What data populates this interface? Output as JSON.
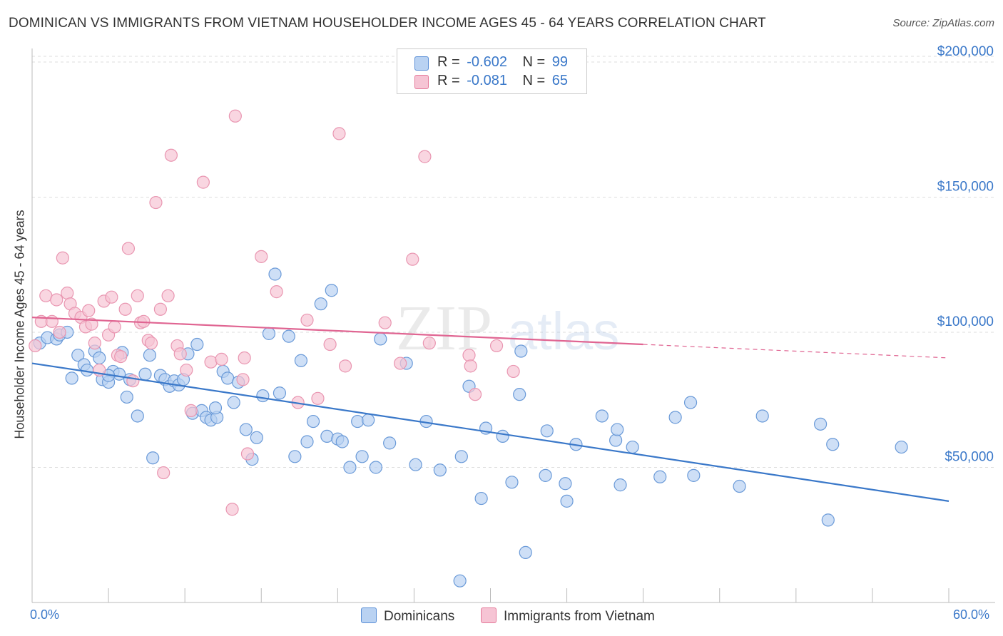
{
  "title": "DOMINICAN VS IMMIGRANTS FROM VIETNAM HOUSEHOLDER INCOME AGES 45 - 64 YEARS CORRELATION CHART",
  "source": "Source: ZipAtlas.com",
  "watermark": {
    "zip": "ZIP",
    "atlas": "atlas"
  },
  "legend": {
    "r_label": "R =",
    "n_label": "N =",
    "rows": [
      {
        "r": "-0.602",
        "n": "99",
        "color": "#5b8fd6"
      },
      {
        "r": "-0.081",
        "n": "65",
        "color": "#e57a9a"
      }
    ]
  },
  "colors": {
    "blue": "#3a78c9",
    "pink": "#e06592",
    "blue_fill": "#b9d2f2",
    "pink_fill": "#f6c4d4"
  },
  "chart_data": {
    "type": "scatter",
    "title": "DOMINICAN VS IMMIGRANTS FROM VIETNAM HOUSEHOLDER INCOME AGES 45 - 64 YEARS CORRELATION CHART",
    "xlabel": "",
    "ylabel": "Householder Income Ages 45 - 64 years",
    "xlim": [
      0,
      60
    ],
    "ylim": [
      0,
      205000
    ],
    "x_tick_labels": [
      "0.0%",
      "60.0%"
    ],
    "y_ticks": [
      50000,
      100000,
      150000,
      200000
    ],
    "y_tick_labels": [
      "$50,000",
      "$100,000",
      "$150,000",
      "$200,000"
    ],
    "grid": true,
    "legend_position": "top-center",
    "series": [
      {
        "name": "Dominicans",
        "r": -0.602,
        "n": 99,
        "trend": {
          "x": [
            0,
            60
          ],
          "y": [
            88500,
            37500
          ],
          "dashed_from": null
        },
        "points": [
          [
            0.5,
            96000
          ],
          [
            1.0,
            98000
          ],
          [
            1.6,
            97500
          ],
          [
            1.8,
            99000
          ],
          [
            2.3,
            100000
          ],
          [
            2.6,
            83000
          ],
          [
            3.0,
            91500
          ],
          [
            3.4,
            88000
          ],
          [
            3.6,
            86000
          ],
          [
            4.1,
            93000
          ],
          [
            4.4,
            90500
          ],
          [
            4.6,
            82500
          ],
          [
            5.0,
            81500
          ],
          [
            5.3,
            85500
          ],
          [
            5.7,
            84500
          ],
          [
            5.9,
            92500
          ],
          [
            6.2,
            76000
          ],
          [
            6.4,
            82500
          ],
          [
            6.9,
            69000
          ],
          [
            7.4,
            84500
          ],
          [
            7.7,
            91500
          ],
          [
            7.9,
            53500
          ],
          [
            8.4,
            84000
          ],
          [
            8.7,
            82500
          ],
          [
            9.0,
            80000
          ],
          [
            9.3,
            82000
          ],
          [
            9.6,
            80500
          ],
          [
            9.9,
            82500
          ],
          [
            10.2,
            92000
          ],
          [
            10.5,
            70000
          ],
          [
            10.8,
            95500
          ],
          [
            11.1,
            71000
          ],
          [
            11.4,
            68500
          ],
          [
            11.7,
            67500
          ],
          [
            12.1,
            68500
          ],
          [
            12.5,
            85500
          ],
          [
            12.8,
            83000
          ],
          [
            13.2,
            74000
          ],
          [
            13.5,
            81500
          ],
          [
            14.0,
            64000
          ],
          [
            14.4,
            53000
          ],
          [
            14.7,
            61000
          ],
          [
            15.1,
            76500
          ],
          [
            15.5,
            99500
          ],
          [
            15.9,
            121500
          ],
          [
            16.2,
            77500
          ],
          [
            16.8,
            98500
          ],
          [
            17.2,
            54000
          ],
          [
            17.6,
            89500
          ],
          [
            18.0,
            59500
          ],
          [
            18.4,
            67000
          ],
          [
            18.9,
            110500
          ],
          [
            19.3,
            61500
          ],
          [
            19.6,
            115500
          ],
          [
            20.0,
            60500
          ],
          [
            20.3,
            59500
          ],
          [
            20.8,
            50000
          ],
          [
            21.3,
            67000
          ],
          [
            21.6,
            54000
          ],
          [
            22.0,
            67500
          ],
          [
            22.5,
            50000
          ],
          [
            22.8,
            97500
          ],
          [
            23.4,
            59000
          ],
          [
            24.5,
            88500
          ],
          [
            25.1,
            51000
          ],
          [
            25.8,
            67000
          ],
          [
            26.7,
            49000
          ],
          [
            28.1,
            54000
          ],
          [
            28.6,
            80000
          ],
          [
            29.4,
            38500
          ],
          [
            29.7,
            64500
          ],
          [
            30.8,
            61500
          ],
          [
            31.4,
            44500
          ],
          [
            31.9,
            77000
          ],
          [
            32.0,
            93000
          ],
          [
            32.3,
            18500
          ],
          [
            33.6,
            47000
          ],
          [
            33.7,
            63500
          ],
          [
            34.9,
            44000
          ],
          [
            35.0,
            37500
          ],
          [
            35.6,
            58500
          ],
          [
            37.3,
            69000
          ],
          [
            38.2,
            60000
          ],
          [
            38.3,
            64000
          ],
          [
            38.5,
            43500
          ],
          [
            39.3,
            57500
          ],
          [
            41.1,
            46500
          ],
          [
            42.1,
            68500
          ],
          [
            43.1,
            74000
          ],
          [
            43.3,
            47000
          ],
          [
            46.3,
            43000
          ],
          [
            47.8,
            69000
          ],
          [
            51.6,
            66000
          ],
          [
            52.1,
            30500
          ],
          [
            52.4,
            58500
          ],
          [
            56.9,
            57500
          ],
          [
            28.0,
            8000
          ],
          [
            5.0,
            84000
          ],
          [
            12.0,
            72000
          ]
        ]
      },
      {
        "name": "Immigrants from Vietnam",
        "r": -0.081,
        "n": 65,
        "trend": {
          "x": [
            0,
            60
          ],
          "y": [
            105500,
            90500
          ],
          "dashed_from": 40.0
        },
        "points": [
          [
            0.2,
            95000
          ],
          [
            0.6,
            104000
          ],
          [
            0.9,
            113500
          ],
          [
            1.3,
            104000
          ],
          [
            1.6,
            112000
          ],
          [
            1.8,
            100000
          ],
          [
            2.0,
            127500
          ],
          [
            2.3,
            114500
          ],
          [
            2.5,
            110500
          ],
          [
            2.8,
            107000
          ],
          [
            3.2,
            105500
          ],
          [
            3.5,
            102000
          ],
          [
            3.7,
            108000
          ],
          [
            3.9,
            103000
          ],
          [
            4.1,
            96000
          ],
          [
            4.4,
            86000
          ],
          [
            4.7,
            111500
          ],
          [
            5.0,
            99000
          ],
          [
            5.2,
            113000
          ],
          [
            5.4,
            102000
          ],
          [
            5.6,
            91500
          ],
          [
            5.8,
            91000
          ],
          [
            6.1,
            108500
          ],
          [
            6.3,
            131000
          ],
          [
            6.6,
            82000
          ],
          [
            6.9,
            113500
          ],
          [
            7.1,
            103500
          ],
          [
            7.3,
            104000
          ],
          [
            7.6,
            97000
          ],
          [
            7.8,
            96000
          ],
          [
            8.1,
            148000
          ],
          [
            8.4,
            108500
          ],
          [
            8.6,
            48000
          ],
          [
            8.9,
            113500
          ],
          [
            9.1,
            165500
          ],
          [
            9.5,
            95000
          ],
          [
            9.7,
            92000
          ],
          [
            10.1,
            86000
          ],
          [
            10.4,
            71000
          ],
          [
            11.2,
            155500
          ],
          [
            11.7,
            89000
          ],
          [
            12.4,
            90000
          ],
          [
            13.1,
            34500
          ],
          [
            13.3,
            180000
          ],
          [
            13.8,
            82500
          ],
          [
            13.9,
            90500
          ],
          [
            14.1,
            55000
          ],
          [
            15.0,
            128000
          ],
          [
            16.0,
            115000
          ],
          [
            17.4,
            74000
          ],
          [
            18.0,
            104500
          ],
          [
            18.7,
            75500
          ],
          [
            19.5,
            95500
          ],
          [
            20.1,
            173500
          ],
          [
            20.5,
            87500
          ],
          [
            23.1,
            103500
          ],
          [
            24.1,
            88500
          ],
          [
            24.9,
            127000
          ],
          [
            25.7,
            165000
          ],
          [
            26.0,
            96000
          ],
          [
            28.6,
            91500
          ],
          [
            28.7,
            87500
          ],
          [
            29.0,
            77000
          ],
          [
            30.4,
            95000
          ],
          [
            31.5,
            85500
          ]
        ]
      }
    ]
  },
  "bottom_legend": [
    "Dominicans",
    "Immigrants from Vietnam"
  ]
}
